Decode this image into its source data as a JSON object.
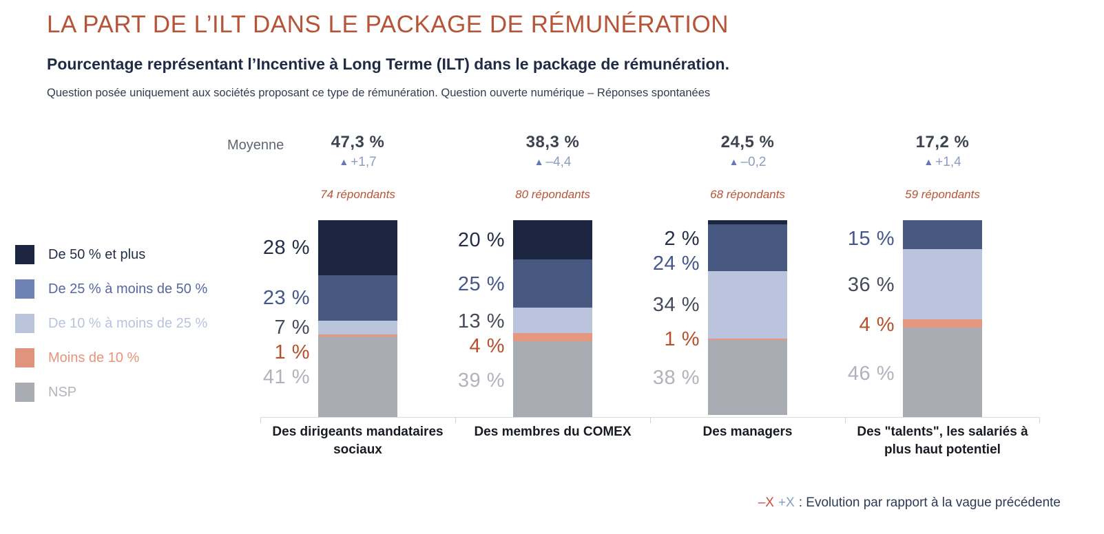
{
  "header": {
    "title": "LA PART DE L’ILT DANS LE PACKAGE DE RÉMUNÉRATION",
    "subtitle": "Pourcentage représentant l’Incentive à Long Terme (ILT) dans le package de rémunération.",
    "note": "Question posée uniquement aux sociétés proposant ce type de rémunération. Question ouverte numérique – Réponses spontanées"
  },
  "moyenne_label": "Moyenne",
  "chart_data": {
    "type": "bar",
    "stacked": true,
    "unit": "%",
    "ylim": [
      0,
      100
    ],
    "grid": false,
    "legend_position": "left",
    "delta_icon": "▲",
    "series": [
      {
        "name": "De 50 % et plus",
        "color": "#1c2640",
        "label_color": "#242e49",
        "legend_swatch_color": "#1c2640",
        "legend_text_color": "#242e49"
      },
      {
        "name": "De 25 % à moins de 50 %",
        "color": "#46587f",
        "label_color": "#44568a",
        "legend_swatch_color": "#6e82b4",
        "legend_text_color": "#55679e"
      },
      {
        "name": "De 10 % à moins de 25 %",
        "color": "#bac4dd",
        "label_color": "#454b59",
        "legend_swatch_color": "#b9c3da",
        "legend_text_color": "#b9c3dd"
      },
      {
        "name": "Moins de 10 %",
        "color": "#e5977f",
        "label_color": "#b4502c",
        "legend_swatch_color": "#e0947e",
        "legend_text_color": "#e8947c"
      },
      {
        "name": "NSP",
        "color": "#a9abb2",
        "label_color": "#b0b3bb",
        "legend_swatch_color": "#a9abb2",
        "legend_text_color": "#b2b5ba"
      }
    ],
    "categories": [
      "Des dirigeants mandataires sociaux",
      "Des membres du COMEX",
      "Des managers",
      "Des \"talents\", les salariés à plus haut potentiel"
    ],
    "groups": [
      {
        "category": "Des dirigeants mandataires sociaux",
        "average_label": "47,3 %",
        "average": 47.3,
        "delta": "+1,7",
        "respondents": "74 répondants",
        "values": [
          28,
          23,
          7,
          1,
          41
        ],
        "labels": [
          "28 %",
          "23 %",
          "7 %",
          "1 %",
          "41 %"
        ]
      },
      {
        "category": "Des membres du COMEX",
        "average_label": "38,3 %",
        "average": 38.3,
        "delta": "–4,4",
        "respondents": "80 répondants",
        "values": [
          20,
          25,
          13,
          4,
          39
        ],
        "labels": [
          "20 %",
          "25 %",
          "13 %",
          "4 %",
          "39 %"
        ]
      },
      {
        "category": "Des managers",
        "average_label": "24,5 %",
        "average": 24.5,
        "delta": "–0,2",
        "respondents": "68 répondants",
        "values": [
          2,
          24,
          34,
          1,
          38
        ],
        "labels": [
          "2 %",
          "24 %",
          "34 %",
          "1 %",
          "38 %"
        ]
      },
      {
        "category": "Des \"talents\", les salariés à plus haut potentiel",
        "average_label": "17,2 %",
        "average": 17.2,
        "delta": "+1,4",
        "respondents": "59 répondants",
        "values": [
          0,
          15,
          36,
          4,
          46
        ],
        "labels": [
          "",
          "15 %",
          "36 %",
          "4 %",
          "46 %"
        ]
      }
    ]
  },
  "footnote": {
    "minus": "–X",
    "plus": "+X",
    "text": ": Evolution par rapport à la vague précédente"
  },
  "colors": {
    "title_orange": "#b75438",
    "subtitle_navy": "#1f2b45",
    "average_text": "#3d434f",
    "delta_triangle": "#6478b4",
    "delta_text": "#8c9cc3",
    "respondents_orange": "#b75438",
    "footnote_minus_red": "#d04a41",
    "footnote_plus_blue": "#8b9cc2",
    "axis_line": "#d9dce1"
  }
}
